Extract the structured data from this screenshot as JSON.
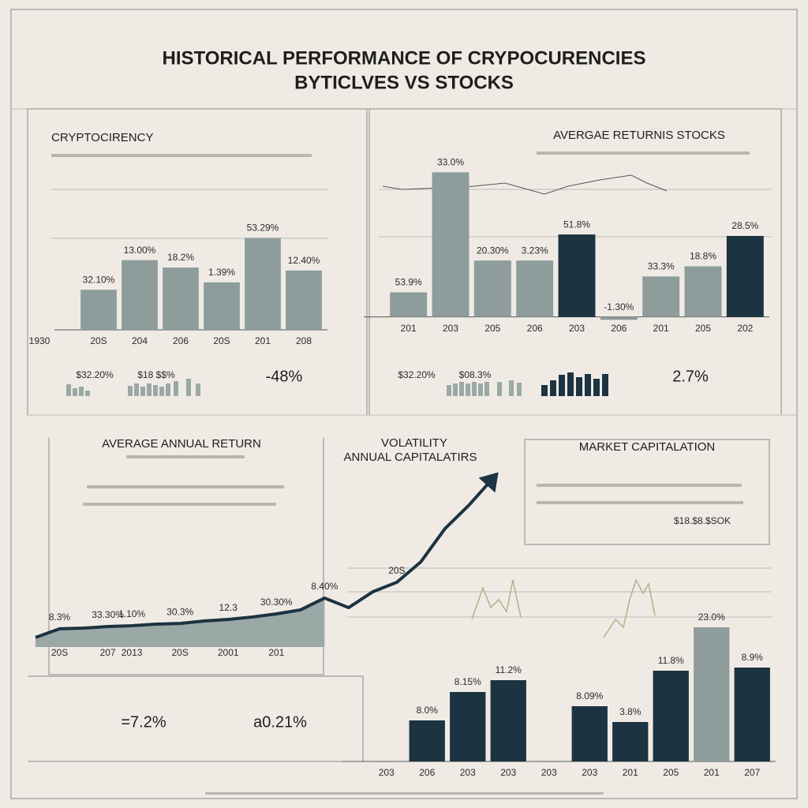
{
  "header": {
    "title": "HISTORICAL PERFORMANCE OF CRYPOCURENCIES",
    "subtitle": "BYTICLVES VS STOCKS"
  },
  "texts": {
    "volatility": "VOLATILITY",
    "volatility_sub": "ANNUAL CAPITALATIRS",
    "market_cap": "MARKET CAPITALATION",
    "stat_crypto": "-48%",
    "stat_stocks": "2.7%",
    "stat_left": "=7.2%",
    "stat_right": "a0.21%",
    "mini_a": "$32.20%",
    "mini_b": "$18 $$%",
    "mini_c": "$32.20%",
    "mini_d": "$08.3%",
    "cap_value": "$18.$8.$SOK"
  },
  "chart_data": [
    {
      "type": "bar",
      "title": "CRYPTOCIRENCY",
      "corner_label": "1930",
      "categories": [
        "20S",
        "204",
        "206",
        "20S",
        "201",
        "208"
      ],
      "values": [
        27,
        47,
        42,
        32,
        62,
        40
      ],
      "color": "#8e9c9b",
      "bar_notes": [
        "32.10%",
        "13.00%",
        "18.2%",
        "1.39%",
        "53.29%",
        "12.40%"
      ],
      "ylim": [
        0,
        100
      ]
    },
    {
      "type": "bar",
      "title": "AVERGAE RETURNIS STOCKS",
      "categories": [
        "201",
        "203",
        "205",
        "206",
        "203",
        "206",
        "201",
        "205",
        "202"
      ],
      "values": [
        17,
        100,
        39,
        39,
        57,
        -2,
        28,
        35,
        56
      ],
      "colors": [
        "#8e9c9b",
        "#8e9c9b",
        "#8e9c9b",
        "#8e9c9b",
        "#1c3341",
        "#8e9c9b",
        "#8e9c9b",
        "#8e9c9b",
        "#1c3341"
      ],
      "bar_notes": [
        "53.9%",
        "33.0%",
        "20.30%",
        "3.23%",
        "51.8%",
        "-1.30%",
        "33.3%",
        "18.8%",
        "28.5%"
      ],
      "ylim": [
        -10,
        110
      ]
    },
    {
      "type": "line",
      "title": "AVERAGE ANNUAL RETURN",
      "categories": [
        null,
        "20S",
        null,
        "207",
        "2013",
        null,
        "20S",
        null,
        "2001",
        null,
        "201",
        null,
        null,
        null,
        null,
        null,
        null,
        null,
        null,
        null
      ],
      "series": [
        {
          "color": "#9aa8a6",
          "fill": true,
          "values": [
            5.5,
            10.5,
            10.9,
            11.8,
            12.3,
            13.2,
            13.6,
            15,
            15.9,
            17.3,
            19.1,
            21.4,
            28.2,
            null,
            null,
            null,
            null,
            null,
            null,
            null
          ]
        },
        {
          "color": "#1c3341",
          "values": [
            5.5,
            10.5,
            10.9,
            11.8,
            12.3,
            13.2,
            13.6,
            15,
            15.9,
            17.3,
            19.1,
            21.4,
            28.2,
            22.7,
            31.8,
            37.3,
            49.1,
            68.2,
            81.8,
            97.3
          ]
        }
      ],
      "point_notes": [
        null,
        "8.3%",
        null,
        "33.30%",
        "1.10%",
        null,
        "30.3%",
        null,
        "12.3",
        null,
        "30.30%",
        null,
        "8.40%",
        null,
        null,
        "20S",
        null,
        null,
        null,
        null
      ],
      "ylim": [
        0,
        100
      ]
    },
    {
      "type": "bar",
      "categories": [
        "203",
        "206",
        "203",
        "203",
        "203",
        "203",
        "201",
        "205",
        "201",
        "207"
      ],
      "values": [
        null,
        26,
        44,
        51.5,
        null,
        35,
        25,
        57.5,
        85,
        59.5
      ],
      "colors": [
        "#1c3341",
        "#1c3341",
        "#1c3341",
        "#1c3341",
        "#1c3341",
        "#1c3341",
        "#1c3341",
        "#1c3341",
        "#8e9c9b",
        "#1c3341"
      ],
      "bar_notes": [
        null,
        "8.0%",
        "8.15%",
        "11.2%",
        null,
        "8.09%",
        "3.8%",
        "11.8%",
        "23.0%",
        "8.9%"
      ],
      "ylim": [
        0,
        100
      ]
    }
  ]
}
